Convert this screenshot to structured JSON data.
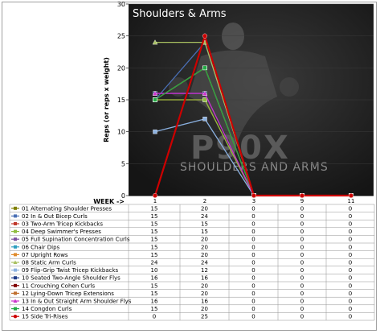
{
  "chart_data": {
    "type": "line",
    "title": "Shoulders & Arms",
    "ylabel": "Reps (or reps x weight)",
    "xlabel": "WEEK ->",
    "ylim": [
      0,
      30
    ],
    "yticks": [
      "0",
      "5",
      "10",
      "15",
      "20",
      "25",
      "30"
    ],
    "categories": [
      "1",
      "2",
      "3",
      "9",
      "11"
    ],
    "watermark": [
      "P90X",
      "SHOULDERS AND ARMS"
    ],
    "series": [
      {
        "name": "01 Alternating Shoulder Presses",
        "color": "#808000",
        "marker": "square",
        "values": [
          15,
          20,
          0,
          0,
          0
        ]
      },
      {
        "name": "02 In & Out Bicep Curls",
        "color": "#4a6fb5",
        "marker": "square",
        "values": [
          15,
          24,
          0,
          0,
          0
        ]
      },
      {
        "name": "03 Two-Arm Tricep Kickbacks",
        "color": "#c0392b",
        "marker": "square",
        "values": [
          15,
          15,
          0,
          0,
          0
        ]
      },
      {
        "name": "04 Deep Swimmer's Presses",
        "color": "#8fbc3f",
        "marker": "square",
        "values": [
          15,
          15,
          0,
          0,
          0
        ]
      },
      {
        "name": "05 Full Supination Concentration Curls",
        "color": "#7b4fa0",
        "marker": "square",
        "values": [
          15,
          20,
          0,
          0,
          0
        ]
      },
      {
        "name": "06 Chair Dips",
        "color": "#2f9fbf",
        "marker": "square",
        "values": [
          15,
          20,
          0,
          0,
          0
        ]
      },
      {
        "name": "07 Upright Rows",
        "color": "#e08b2c",
        "marker": "square",
        "values": [
          15,
          20,
          0,
          0,
          0
        ]
      },
      {
        "name": "08 Static Arm Curls",
        "color": "#a8c060",
        "marker": "triangle",
        "values": [
          24,
          24,
          0,
          0,
          0
        ]
      },
      {
        "name": "09 Flip-Grip Twist Tricep Kickbacks",
        "color": "#8ab0e0",
        "marker": "square",
        "values": [
          10,
          12,
          0,
          0,
          0
        ]
      },
      {
        "name": "10 Seated Two-Angle Shoulder Flys",
        "color": "#1f3c88",
        "marker": "square",
        "values": [
          16,
          16,
          0,
          0,
          0
        ]
      },
      {
        "name": "11 Crouching Cohen Curls",
        "color": "#7f0000",
        "marker": "square",
        "values": [
          15,
          20,
          0,
          0,
          0
        ]
      },
      {
        "name": "12 Lying-Down Tricep Extensions",
        "color": "#c07030",
        "marker": "square",
        "values": [
          15,
          20,
          0,
          0,
          0
        ]
      },
      {
        "name": "13 In & Out Straight Arm Shoulder Flys",
        "color": "#cc33cc",
        "marker": "triangle",
        "values": [
          16,
          16,
          0,
          0,
          0
        ]
      },
      {
        "name": "14 Congdon Curls",
        "color": "#22aa44",
        "marker": "square",
        "values": [
          15,
          20,
          0,
          0,
          0
        ]
      },
      {
        "name": "15 Side Tri-Rises",
        "color": "#cc0000",
        "marker": "circle",
        "values": [
          0,
          25,
          0,
          0,
          0
        ]
      }
    ]
  }
}
